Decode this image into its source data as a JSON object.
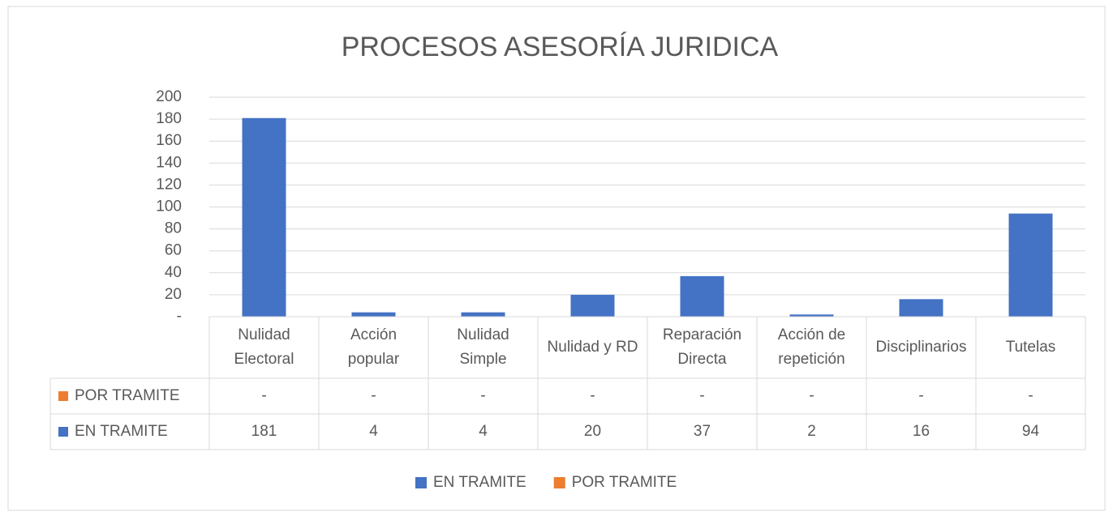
{
  "chart_data": {
    "type": "bar",
    "title": "PROCESOS ASESORÍA JURIDICA",
    "categories": [
      "Nulidad Electoral",
      "Acción popular",
      "Nulidad Simple",
      "Nulidad y RD",
      "Reparación Directa",
      "Acción de repetición",
      "Disciplinarios",
      "Tutelas"
    ],
    "series": [
      {
        "name": "EN TRAMITE",
        "color": "#4472c4",
        "values": [
          181,
          4,
          4,
          20,
          37,
          2,
          16,
          94
        ]
      },
      {
        "name": "POR TRAMITE",
        "color": "#ed7d31",
        "values": [
          0,
          0,
          0,
          0,
          0,
          0,
          0,
          0
        ],
        "value_labels": [
          "-",
          "-",
          "-",
          "-",
          "-",
          "-",
          "-",
          "-"
        ]
      }
    ],
    "ylim": [
      0,
      200
    ],
    "yticks": [
      {
        "value": 0,
        "label": "-"
      },
      20,
      40,
      60,
      80,
      100,
      120,
      140,
      160,
      180,
      200
    ],
    "grid": true,
    "legend": "bottom",
    "data_table": true
  }
}
